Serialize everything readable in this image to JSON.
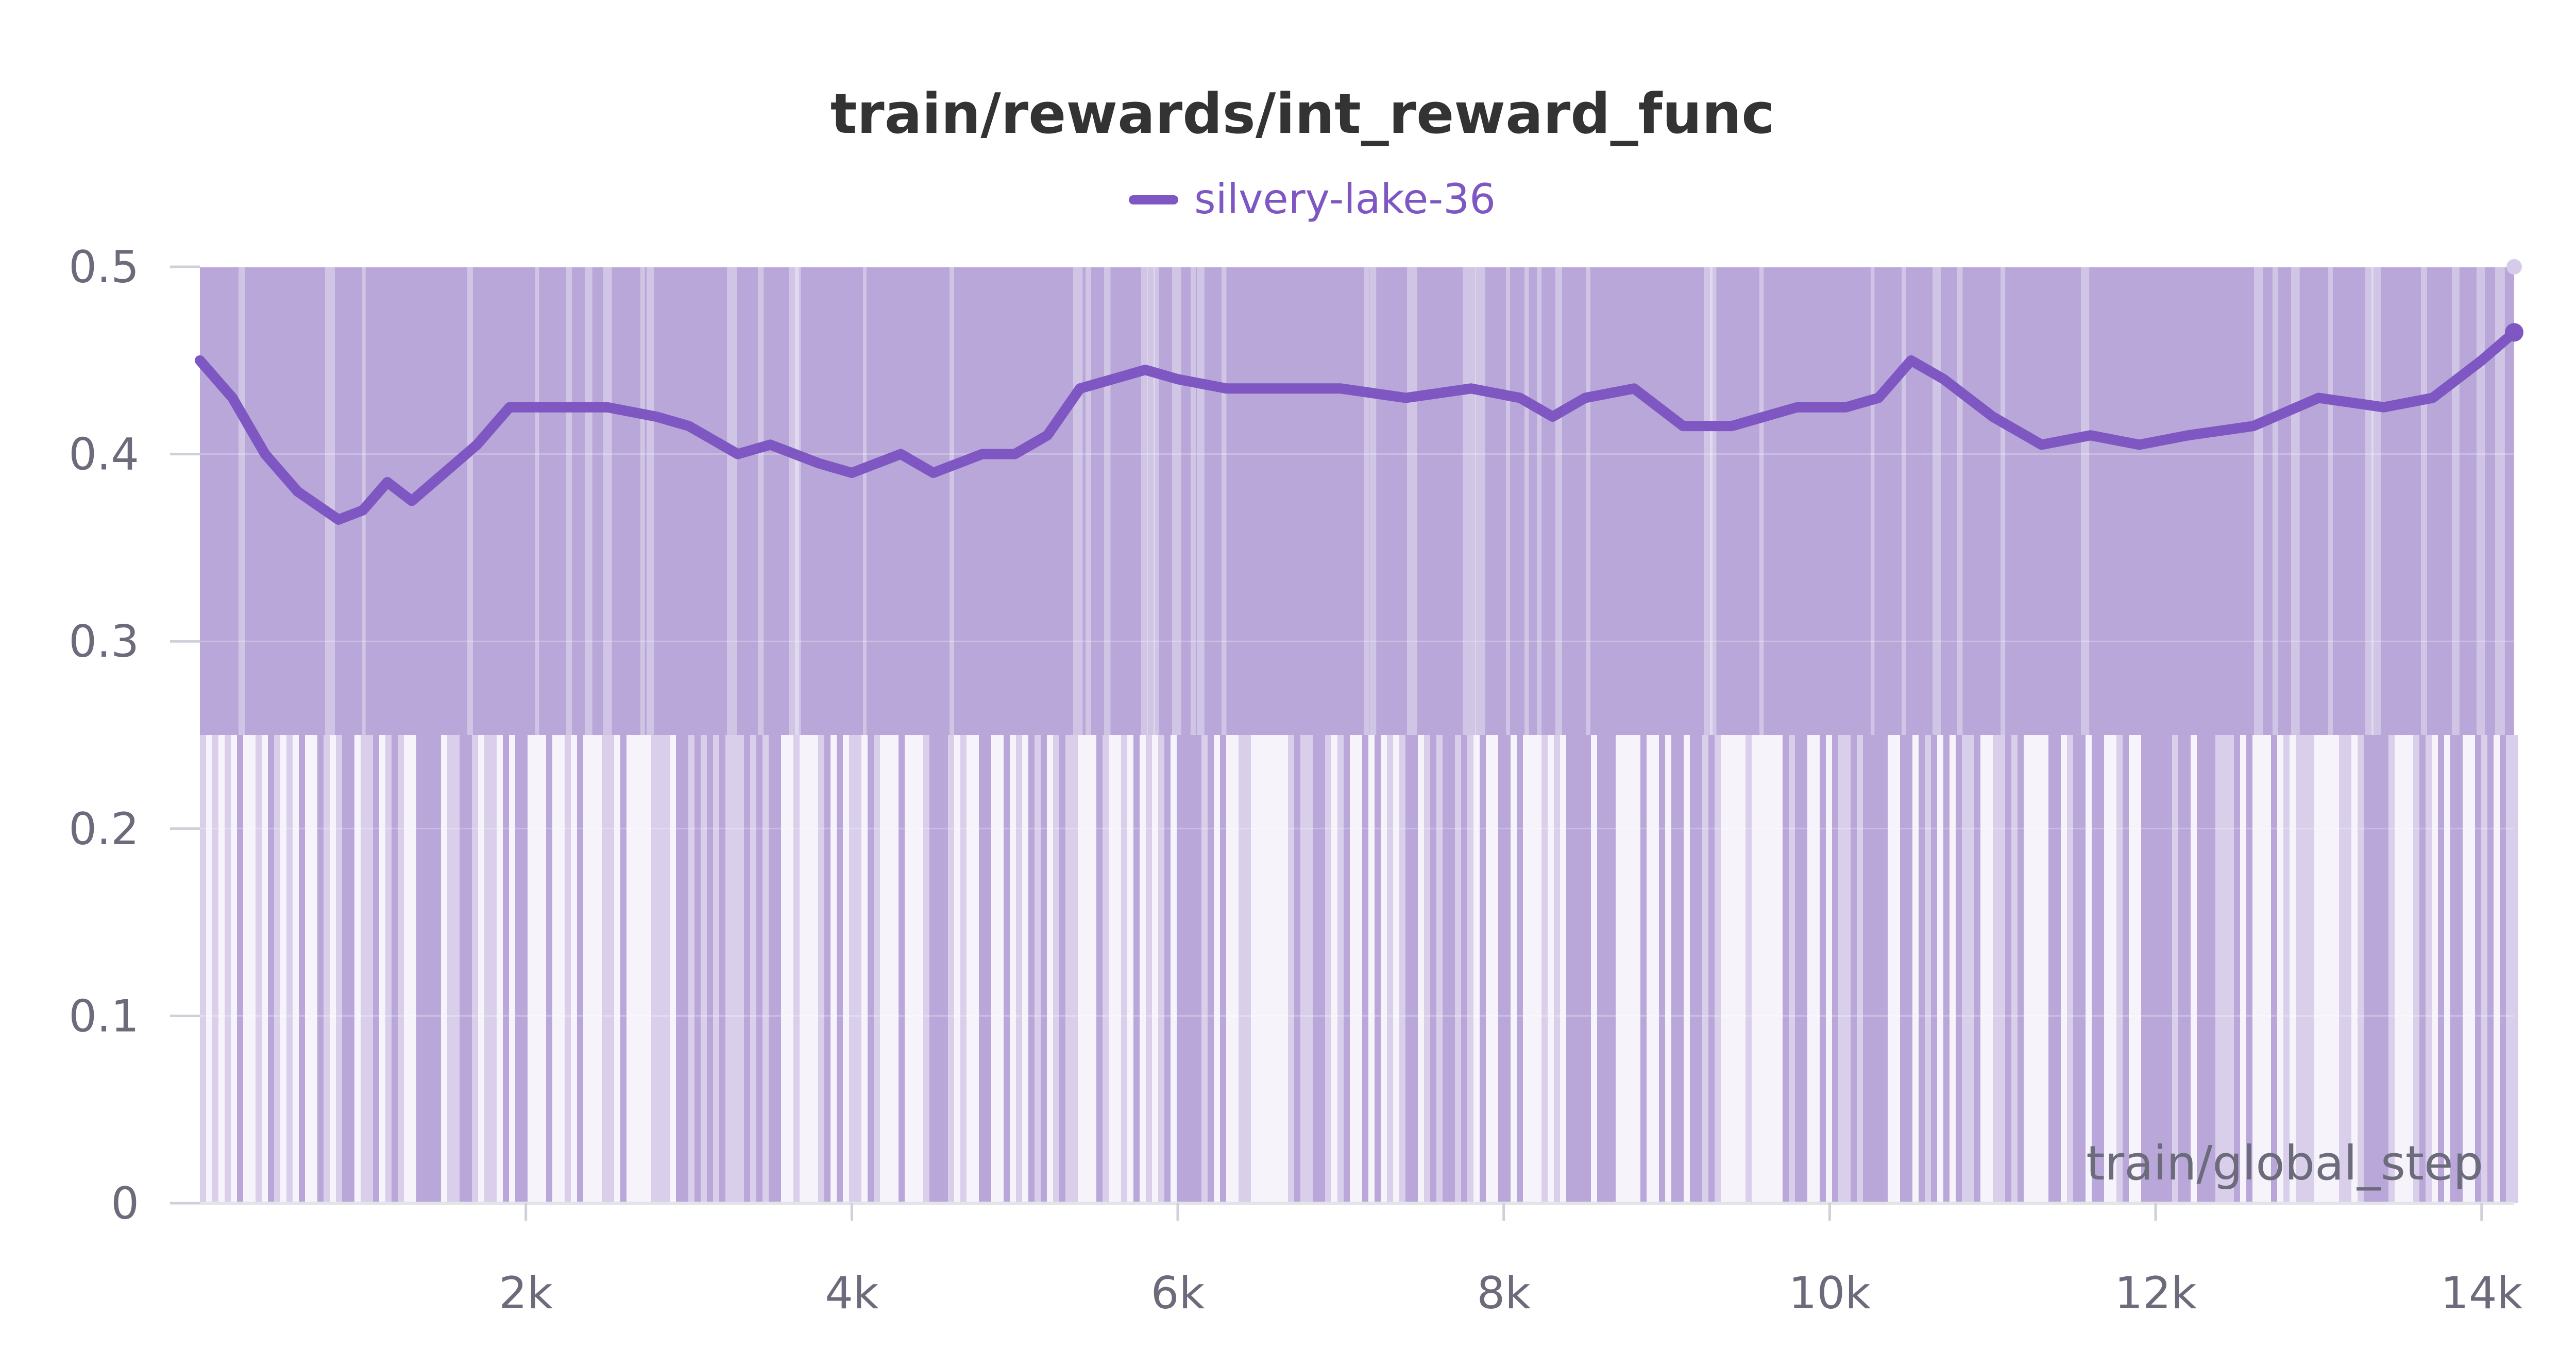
{
  "chart_data": {
    "type": "line",
    "title": "train/rewards/int_reward_func",
    "xlabel": "train/global_step",
    "ylabel": "",
    "xlim": [
      0,
      14200
    ],
    "ylim": [
      0,
      0.5
    ],
    "x_ticks": [
      2000,
      4000,
      6000,
      8000,
      10000,
      12000,
      14000
    ],
    "x_tick_labels": [
      "2k",
      "4k",
      "6k",
      "8k",
      "10k",
      "12k",
      "14k"
    ],
    "y_ticks": [
      0,
      0.1,
      0.2,
      0.3,
      0.4,
      0.5
    ],
    "y_tick_labels": [
      "0",
      "0.1",
      "0.2",
      "0.3",
      "0.4",
      "0.5"
    ],
    "legend": {
      "placement": "top-center"
    },
    "grid": true,
    "series": [
      {
        "name": "silvery-lake-36",
        "color": "#7e57c2",
        "raw_color": "#b9a7d9",
        "raw_description_values": [
          0,
          0.25,
          0.5
        ],
        "smoothed": {
          "x": [
            0,
            200,
            400,
            600,
            850,
            1000,
            1150,
            1300,
            1500,
            1700,
            1900,
            2200,
            2500,
            2800,
            3000,
            3300,
            3500,
            3800,
            4000,
            4300,
            4500,
            4800,
            5000,
            5200,
            5400,
            5600,
            5800,
            6000,
            6300,
            6600,
            7000,
            7400,
            7800,
            8100,
            8300,
            8500,
            8800,
            9100,
            9400,
            9800,
            10100,
            10300,
            10500,
            10700,
            11000,
            11300,
            11600,
            11900,
            12200,
            12600,
            13000,
            13400,
            13700,
            14000,
            14200
          ],
          "y": [
            0.45,
            0.43,
            0.4,
            0.38,
            0.365,
            0.37,
            0.385,
            0.375,
            0.39,
            0.405,
            0.425,
            0.425,
            0.425,
            0.42,
            0.415,
            0.4,
            0.405,
            0.395,
            0.39,
            0.4,
            0.39,
            0.4,
            0.4,
            0.41,
            0.435,
            0.44,
            0.445,
            0.44,
            0.435,
            0.435,
            0.435,
            0.43,
            0.435,
            0.43,
            0.42,
            0.43,
            0.435,
            0.415,
            0.415,
            0.425,
            0.425,
            0.43,
            0.45,
            0.44,
            0.42,
            0.405,
            0.41,
            0.405,
            0.41,
            0.415,
            0.43,
            0.425,
            0.43,
            0.45,
            0.465
          ]
        }
      }
    ]
  }
}
